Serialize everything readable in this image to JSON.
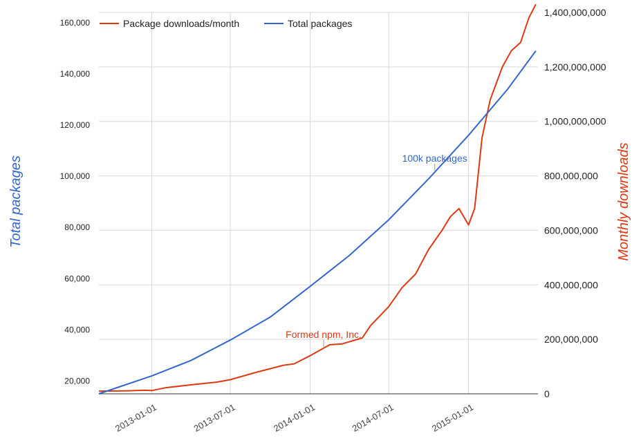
{
  "chart_data": {
    "type": "line",
    "x_type": "date",
    "xlim": [
      "2012-09-01",
      "2015-06-10"
    ],
    "x_ticks": [
      "2013-01-01",
      "2013-07-01",
      "2014-01-01",
      "2014-07-01",
      "2015-01-01"
    ],
    "grid": true,
    "legend": {
      "position": "top-left",
      "entries": [
        "Package downloads/month",
        "Total packages"
      ]
    },
    "y_left": {
      "label": "Total packages",
      "color": "#3366cc",
      "ylim": [
        15000,
        164000
      ],
      "ticks": [
        20000,
        40000,
        60000,
        80000,
        100000,
        120000,
        140000,
        160000
      ],
      "tick_labels": [
        "20,000",
        "40,000",
        "60,000",
        "80,000",
        "100,000",
        "120,000",
        "140,000",
        "160,000"
      ]
    },
    "y_right": {
      "label": "Monthly downloads",
      "color": "#dc3912",
      "ylim": [
        0,
        1400000000
      ],
      "ticks": [
        0,
        200000000,
        400000000,
        600000000,
        800000000,
        1000000000,
        1200000000,
        1400000000
      ],
      "tick_labels": [
        "0",
        "200,000,000",
        "400,000,000",
        "600,000,000",
        "800,000,000",
        "1,000,000,000",
        "1,200,000,000",
        "1,400,000,000"
      ]
    },
    "series": [
      {
        "name": "Package downloads/month",
        "axis": "right",
        "color": "#dc3912",
        "points": [
          [
            "2012-09-01",
            10000000
          ],
          [
            "2012-11-01",
            11000000
          ],
          [
            "2012-12-15",
            13000000
          ],
          [
            "2013-01-01",
            12000000
          ],
          [
            "2013-02-01",
            22000000
          ],
          [
            "2013-04-01",
            33000000
          ],
          [
            "2013-06-01",
            43000000
          ],
          [
            "2013-07-01",
            52000000
          ],
          [
            "2013-09-01",
            80000000
          ],
          [
            "2013-11-01",
            105000000
          ],
          [
            "2013-11-25",
            110000000
          ],
          [
            "2014-01-01",
            140000000
          ],
          [
            "2014-02-15",
            180000000
          ],
          [
            "2014-03-15",
            183000000
          ],
          [
            "2014-05-01",
            205000000
          ],
          [
            "2014-05-20",
            250000000
          ],
          [
            "2014-07-01",
            320000000
          ],
          [
            "2014-08-01",
            390000000
          ],
          [
            "2014-09-01",
            440000000
          ],
          [
            "2014-10-01",
            530000000
          ],
          [
            "2014-11-01",
            600000000
          ],
          [
            "2014-11-20",
            650000000
          ],
          [
            "2014-12-10",
            680000000
          ],
          [
            "2015-01-01",
            620000000
          ],
          [
            "2015-01-15",
            680000000
          ],
          [
            "2015-02-01",
            940000000
          ],
          [
            "2015-02-20",
            1080000000
          ],
          [
            "2015-03-20",
            1200000000
          ],
          [
            "2015-04-10",
            1260000000
          ],
          [
            "2015-05-01",
            1290000000
          ],
          [
            "2015-05-20",
            1380000000
          ],
          [
            "2015-06-05",
            1430000000
          ]
        ]
      },
      {
        "name": "Total packages",
        "axis": "left",
        "color": "#3366cc",
        "points": [
          [
            "2012-09-01",
            15000
          ],
          [
            "2012-11-01",
            18500
          ],
          [
            "2013-01-01",
            22000
          ],
          [
            "2013-04-01",
            28000
          ],
          [
            "2013-07-01",
            36000
          ],
          [
            "2013-10-01",
            45000
          ],
          [
            "2014-01-01",
            57000
          ],
          [
            "2014-04-01",
            69000
          ],
          [
            "2014-07-01",
            83000
          ],
          [
            "2014-10-01",
            99000
          ],
          [
            "2015-01-01",
            116000
          ],
          [
            "2015-04-01",
            134000
          ],
          [
            "2015-06-05",
            149000
          ]
        ]
      }
    ],
    "annotations": [
      {
        "text": "Formed npm, Inc.",
        "series": "Package downloads/month",
        "x": "2014-02-01"
      },
      {
        "text": "100k packages",
        "series": "Total packages",
        "x": "2014-10-15"
      }
    ]
  }
}
